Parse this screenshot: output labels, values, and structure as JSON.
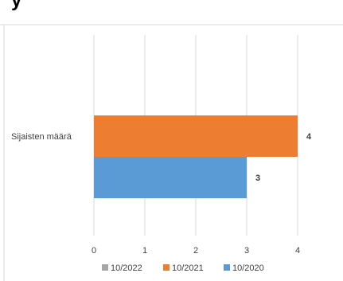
{
  "header": {
    "title_fragment": "y"
  },
  "chart_data": {
    "type": "bar",
    "orientation": "horizontal",
    "categories": [
      "Sijaisten määrä"
    ],
    "series": [
      {
        "name": "10/2022",
        "values": [
          null
        ],
        "color": "#A5A5A5"
      },
      {
        "name": "10/2021",
        "values": [
          4
        ],
        "color": "#ED7D31"
      },
      {
        "name": "10/2020",
        "values": [
          3
        ],
        "color": "#5B9BD5"
      }
    ],
    "xlim": [
      0,
      4
    ],
    "xticks": [
      "0",
      "1",
      "2",
      "3",
      "4"
    ],
    "data_labels": [
      "4",
      "3"
    ],
    "grid": true,
    "legend_position": "bottom"
  }
}
